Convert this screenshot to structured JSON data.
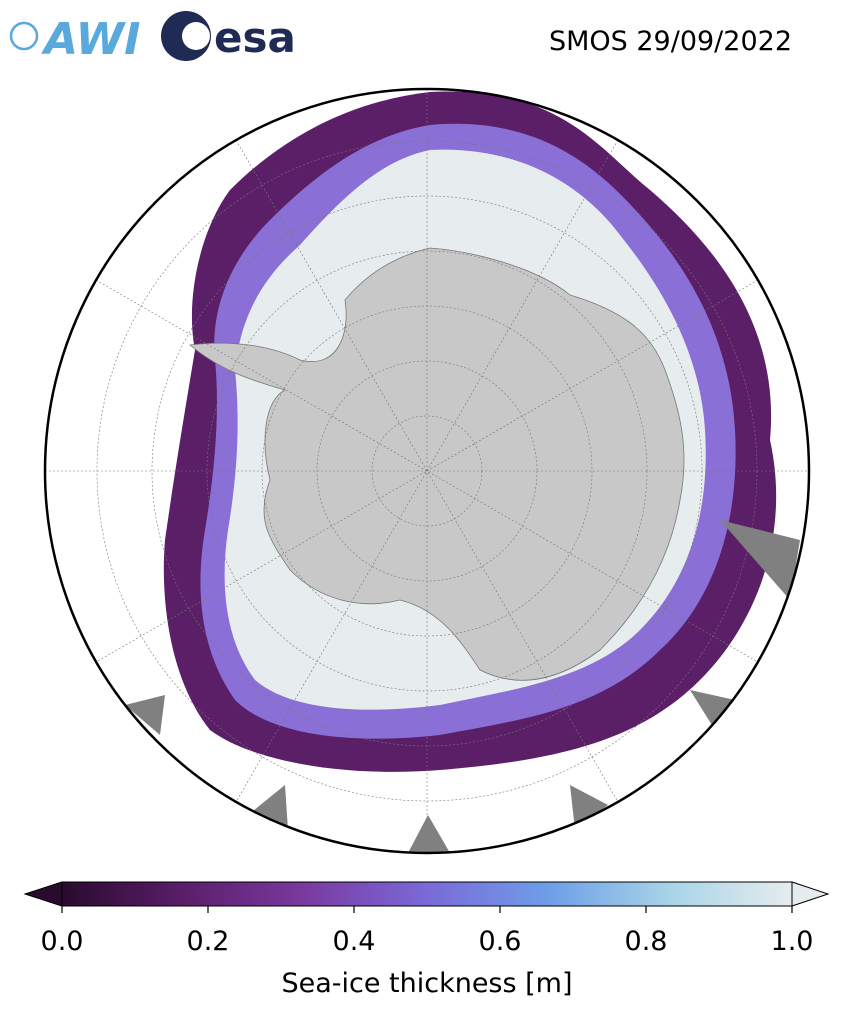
{
  "header": {
    "awi_logo": "AWI",
    "esa_logo": "esa",
    "title": "SMOS 29/09/2022"
  },
  "colorbar": {
    "lim": [
      0,
      1
    ],
    "ticks": [
      {
        "value": 0,
        "label": "0.0"
      },
      0.2,
      0.4,
      0.6,
      0.8,
      {
        "value": 1,
        "label": "1.0"
      }
    ],
    "label": "Sea-ice thickness [m]",
    "colors": [
      "#2a0a2e",
      "#5a1e6a",
      "#7a3aa0",
      "#7a6ad8",
      "#6e9ee8",
      "#a8d4e8",
      "#e6ecee"
    ]
  }
}
